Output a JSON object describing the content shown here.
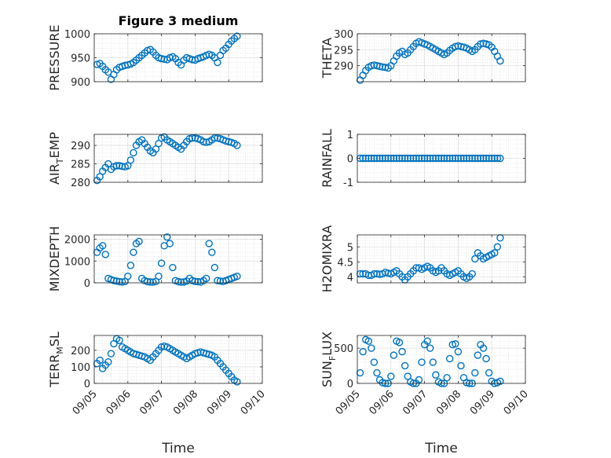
{
  "figure_title": "Figure 3 medium",
  "chart_data": [
    {
      "type": "scatter",
      "title": "Figure 3 medium",
      "ylabel": "PRESSURE",
      "xlabel": "",
      "xlim": [
        "09/05",
        "09/10"
      ],
      "ylim": [
        900,
        1000
      ],
      "yticks": [
        900,
        950,
        1000
      ],
      "grid": true,
      "marker_color": "#0072BD",
      "x": [
        "09/05 02:00",
        "09/05 04:00",
        "09/05 06:00",
        "09/05 08:00",
        "09/05 10:00",
        "09/05 12:00",
        "09/05 14:00",
        "09/05 16:00",
        "09/05 18:00",
        "09/05 20:00",
        "09/05 22:00",
        "09/06 00:00",
        "09/06 02:00",
        "09/06 04:00",
        "09/06 06:00",
        "09/06 08:00",
        "09/06 10:00",
        "09/06 12:00",
        "09/06 14:00",
        "09/06 16:00",
        "09/06 18:00",
        "09/06 20:00",
        "09/06 22:00",
        "09/07 00:00",
        "09/07 02:00",
        "09/07 04:00",
        "09/07 06:00",
        "09/07 08:00",
        "09/07 10:00",
        "09/07 12:00",
        "09/07 14:00",
        "09/07 16:00",
        "09/07 18:00",
        "09/07 20:00",
        "09/07 22:00",
        "09/08 00:00",
        "09/08 02:00",
        "09/08 04:00",
        "09/08 06:00",
        "09/08 08:00",
        "09/08 10:00",
        "09/08 12:00",
        "09/08 14:00",
        "09/08 16:00",
        "09/08 18:00",
        "09/08 20:00",
        "09/08 22:00",
        "09/09 00:00",
        "09/09 02:00",
        "09/09 04:00",
        "09/09 06:00"
      ],
      "y": [
        936,
        938,
        932,
        925,
        920,
        905,
        915,
        925,
        930,
        932,
        934,
        935,
        937,
        940,
        945,
        950,
        955,
        960,
        965,
        967,
        962,
        955,
        950,
        948,
        947,
        946,
        950,
        952,
        948,
        940,
        935,
        945,
        950,
        948,
        946,
        945,
        948,
        950,
        952,
        955,
        957,
        955,
        950,
        940,
        955,
        965,
        970,
        978,
        985,
        990,
        995
      ]
    },
    {
      "type": "scatter",
      "ylabel": "THETA",
      "xlabel": "",
      "xlim": [
        "09/05",
        "09/10"
      ],
      "ylim": [
        285,
        300
      ],
      "yticks": [
        290,
        295,
        300
      ],
      "grid": true,
      "marker_color": "#0072BD",
      "x": [
        "09/05 02:00",
        "09/05 04:00",
        "09/05 06:00",
        "09/05 08:00",
        "09/05 10:00",
        "09/05 12:00",
        "09/05 14:00",
        "09/05 16:00",
        "09/05 18:00",
        "09/05 20:00",
        "09/05 22:00",
        "09/06 00:00",
        "09/06 02:00",
        "09/06 04:00",
        "09/06 06:00",
        "09/06 08:00",
        "09/06 10:00",
        "09/06 12:00",
        "09/06 14:00",
        "09/06 16:00",
        "09/06 18:00",
        "09/06 20:00",
        "09/06 22:00",
        "09/07 00:00",
        "09/07 02:00",
        "09/07 04:00",
        "09/07 06:00",
        "09/07 08:00",
        "09/07 10:00",
        "09/07 12:00",
        "09/07 14:00",
        "09/07 16:00",
        "09/07 18:00",
        "09/07 20:00",
        "09/07 22:00",
        "09/08 00:00",
        "09/08 02:00",
        "09/08 04:00",
        "09/08 06:00",
        "09/08 08:00",
        "09/08 10:00",
        "09/08 12:00",
        "09/08 14:00",
        "09/08 16:00",
        "09/08 18:00",
        "09/08 20:00",
        "09/08 22:00",
        "09/09 00:00",
        "09/09 02:00",
        "09/09 04:00",
        "09/09 06:00"
      ],
      "y": [
        285.5,
        287,
        288.5,
        289.5,
        290,
        290.2,
        290,
        289.8,
        289.6,
        289.5,
        289.3,
        290,
        291.5,
        293,
        294,
        294.5,
        293.5,
        294,
        295,
        296,
        297,
        297.5,
        297.2,
        296.8,
        296.5,
        296,
        295.5,
        295,
        294.5,
        294,
        293.5,
        294,
        294.8,
        295.5,
        296,
        296.2,
        296,
        295.8,
        295.5,
        295,
        294.5,
        295,
        296,
        296.8,
        297,
        296.8,
        296.5,
        295.8,
        294.5,
        293,
        291.5
      ]
    },
    {
      "type": "scatter",
      "ylabel": "AIR_TEMP",
      "ylabel_parts": {
        "base": "AIR",
        "sub": "T",
        "rest": "EMP"
      },
      "xlabel": "",
      "xlim": [
        "09/05",
        "09/10"
      ],
      "ylim": [
        280,
        293
      ],
      "yticks": [
        280,
        285,
        290
      ],
      "grid": true,
      "marker_color": "#0072BD",
      "x": [
        "09/05 02:00",
        "09/05 04:00",
        "09/05 06:00",
        "09/05 08:00",
        "09/05 10:00",
        "09/05 12:00",
        "09/05 14:00",
        "09/05 16:00",
        "09/05 18:00",
        "09/05 20:00",
        "09/05 22:00",
        "09/06 00:00",
        "09/06 02:00",
        "09/06 04:00",
        "09/06 06:00",
        "09/06 08:00",
        "09/06 10:00",
        "09/06 12:00",
        "09/06 14:00",
        "09/06 16:00",
        "09/06 18:00",
        "09/06 20:00",
        "09/06 22:00",
        "09/07 00:00",
        "09/07 02:00",
        "09/07 04:00",
        "09/07 06:00",
        "09/07 08:00",
        "09/07 10:00",
        "09/07 12:00",
        "09/07 14:00",
        "09/07 16:00",
        "09/07 18:00",
        "09/07 20:00",
        "09/07 22:00",
        "09/08 00:00",
        "09/08 02:00",
        "09/08 04:00",
        "09/08 06:00",
        "09/08 08:00",
        "09/08 10:00",
        "09/08 12:00",
        "09/08 14:00",
        "09/08 16:00",
        "09/08 18:00",
        "09/08 20:00",
        "09/08 22:00",
        "09/09 00:00",
        "09/09 02:00",
        "09/09 04:00",
        "09/09 06:00"
      ],
      "y": [
        280.5,
        281.5,
        283,
        284,
        285,
        283.5,
        284.2,
        284.5,
        284.5,
        284.3,
        284.2,
        284.5,
        286,
        288,
        290,
        291,
        291.5,
        290.5,
        289.5,
        288.5,
        288,
        289,
        290.5,
        292,
        292.3,
        291.5,
        291,
        290.5,
        290,
        289.5,
        289,
        290,
        291,
        291.8,
        292,
        292,
        291.8,
        291.5,
        291,
        290.8,
        291,
        291.5,
        292,
        292,
        291.8,
        291.5,
        291.2,
        291,
        290.8,
        290.5,
        290
      ]
    },
    {
      "type": "scatter",
      "ylabel": "RAINFALL",
      "xlabel": "",
      "xlim": [
        "09/05",
        "09/10"
      ],
      "ylim": [
        -1,
        1
      ],
      "yticks": [
        -1,
        0,
        1
      ],
      "grid": true,
      "marker_color": "#0072BD",
      "x": [
        "09/05 02:00",
        "09/05 04:00",
        "09/05 06:00",
        "09/05 08:00",
        "09/05 10:00",
        "09/05 12:00",
        "09/05 14:00",
        "09/05 16:00",
        "09/05 18:00",
        "09/05 20:00",
        "09/05 22:00",
        "09/06 00:00",
        "09/06 02:00",
        "09/06 04:00",
        "09/06 06:00",
        "09/06 08:00",
        "09/06 10:00",
        "09/06 12:00",
        "09/06 14:00",
        "09/06 16:00",
        "09/06 18:00",
        "09/06 20:00",
        "09/06 22:00",
        "09/07 00:00",
        "09/07 02:00",
        "09/07 04:00",
        "09/07 06:00",
        "09/07 08:00",
        "09/07 10:00",
        "09/07 12:00",
        "09/07 14:00",
        "09/07 16:00",
        "09/07 18:00",
        "09/07 20:00",
        "09/07 22:00",
        "09/08 00:00",
        "09/08 02:00",
        "09/08 04:00",
        "09/08 06:00",
        "09/08 08:00",
        "09/08 10:00",
        "09/08 12:00",
        "09/08 14:00",
        "09/08 16:00",
        "09/08 18:00",
        "09/08 20:00",
        "09/08 22:00",
        "09/09 00:00",
        "09/09 02:00",
        "09/09 04:00",
        "09/09 06:00"
      ],
      "y": [
        0,
        0,
        0,
        0,
        0,
        0,
        0,
        0,
        0,
        0,
        0,
        0,
        0,
        0,
        0,
        0,
        0,
        0,
        0,
        0,
        0,
        0,
        0,
        0,
        0,
        0,
        0,
        0,
        0,
        0,
        0,
        0,
        0,
        0,
        0,
        0,
        0,
        0,
        0,
        0,
        0,
        0,
        0,
        0,
        0,
        0,
        0,
        0,
        0,
        0,
        0
      ]
    },
    {
      "type": "scatter",
      "ylabel": "MIXDEPTH",
      "xlabel": "",
      "xlim": [
        "09/05",
        "09/10"
      ],
      "ylim": [
        0,
        2200
      ],
      "yticks": [
        0,
        1000,
        2000
      ],
      "grid": true,
      "marker_color": "#0072BD",
      "x": [
        "09/05 02:00",
        "09/05 04:00",
        "09/05 06:00",
        "09/05 08:00",
        "09/05 10:00",
        "09/05 12:00",
        "09/05 14:00",
        "09/05 16:00",
        "09/05 18:00",
        "09/05 20:00",
        "09/05 22:00",
        "09/06 00:00",
        "09/06 02:00",
        "09/06 04:00",
        "09/06 06:00",
        "09/06 08:00",
        "09/06 10:00",
        "09/06 12:00",
        "09/06 14:00",
        "09/06 16:00",
        "09/06 18:00",
        "09/06 20:00",
        "09/06 22:00",
        "09/07 00:00",
        "09/07 02:00",
        "09/07 04:00",
        "09/07 06:00",
        "09/07 08:00",
        "09/07 10:00",
        "09/07 12:00",
        "09/07 14:00",
        "09/07 16:00",
        "09/07 18:00",
        "09/07 20:00",
        "09/07 22:00",
        "09/08 00:00",
        "09/08 02:00",
        "09/08 04:00",
        "09/08 06:00",
        "09/08 08:00",
        "09/08 10:00",
        "09/08 12:00",
        "09/08 14:00",
        "09/08 16:00",
        "09/08 18:00",
        "09/08 20:00",
        "09/08 22:00",
        "09/09 00:00",
        "09/09 02:00",
        "09/09 04:00",
        "09/09 06:00"
      ],
      "y": [
        1400,
        1600,
        1700,
        1300,
        200,
        150,
        100,
        80,
        50,
        40,
        60,
        300,
        800,
        1400,
        1800,
        1900,
        200,
        100,
        50,
        40,
        30,
        60,
        300,
        900,
        1700,
        2100,
        1800,
        700,
        100,
        50,
        30,
        40,
        80,
        200,
        100,
        60,
        50,
        40,
        100,
        200,
        1800,
        1400,
        700,
        100,
        80,
        60,
        100,
        150,
        200,
        250,
        300
      ]
    },
    {
      "type": "scatter",
      "ylabel": "H2OMIXRA",
      "xlabel": "",
      "xlim": [
        "09/05",
        "09/10"
      ],
      "ylim": [
        3.8,
        5.4
      ],
      "yticks": [
        4,
        4.5,
        5
      ],
      "grid": true,
      "marker_color": "#0072BD",
      "x": [
        "09/05 02:00",
        "09/05 04:00",
        "09/05 06:00",
        "09/05 08:00",
        "09/05 10:00",
        "09/05 12:00",
        "09/05 14:00",
        "09/05 16:00",
        "09/05 18:00",
        "09/05 20:00",
        "09/05 22:00",
        "09/06 00:00",
        "09/06 02:00",
        "09/06 04:00",
        "09/06 06:00",
        "09/06 08:00",
        "09/06 10:00",
        "09/06 12:00",
        "09/06 14:00",
        "09/06 16:00",
        "09/06 18:00",
        "09/06 20:00",
        "09/06 22:00",
        "09/07 00:00",
        "09/07 02:00",
        "09/07 04:00",
        "09/07 06:00",
        "09/07 08:00",
        "09/07 10:00",
        "09/07 12:00",
        "09/07 14:00",
        "09/07 16:00",
        "09/07 18:00",
        "09/07 20:00",
        "09/07 22:00",
        "09/08 00:00",
        "09/08 02:00",
        "09/08 04:00",
        "09/08 06:00",
        "09/08 08:00",
        "09/08 10:00",
        "09/08 12:00",
        "09/08 14:00",
        "09/08 16:00",
        "09/08 18:00",
        "09/08 20:00",
        "09/08 22:00",
        "09/09 00:00",
        "09/09 02:00",
        "09/09 04:00",
        "09/09 06:00"
      ],
      "y": [
        4.1,
        4.1,
        4.1,
        4.05,
        4.05,
        4.1,
        4.1,
        4.08,
        4.1,
        4.15,
        4.12,
        4.1,
        4.15,
        4.2,
        4.1,
        4.0,
        3.9,
        4.0,
        4.1,
        4.2,
        4.3,
        4.3,
        4.25,
        4.3,
        4.35,
        4.3,
        4.2,
        4.15,
        4.2,
        4.3,
        4.2,
        4.1,
        4.05,
        4.1,
        4.15,
        4.2,
        4.1,
        4.0,
        3.95,
        4.0,
        4.1,
        4.6,
        4.8,
        4.7,
        4.6,
        4.65,
        4.7,
        4.75,
        4.8,
        5.0,
        5.3
      ]
    },
    {
      "type": "scatter",
      "ylabel": "TERR_MSL",
      "ylabel_parts": {
        "base": "TERR",
        "sub": "M",
        "rest": "SL"
      },
      "xlabel": "Time",
      "xlim": [
        "09/05",
        "09/10"
      ],
      "ylim": [
        0,
        290
      ],
      "yticks": [
        0,
        100,
        200
      ],
      "xticks": [
        "09/05",
        "09/06",
        "09/07",
        "09/08",
        "09/09",
        "09/10"
      ],
      "grid": true,
      "marker_color": "#0072BD",
      "x": [
        "09/05 02:00",
        "09/05 04:00",
        "09/05 06:00",
        "09/05 08:00",
        "09/05 10:00",
        "09/05 12:00",
        "09/05 14:00",
        "09/05 16:00",
        "09/05 18:00",
        "09/05 20:00",
        "09/05 22:00",
        "09/06 00:00",
        "09/06 02:00",
        "09/06 04:00",
        "09/06 06:00",
        "09/06 08:00",
        "09/06 10:00",
        "09/06 12:00",
        "09/06 14:00",
        "09/06 16:00",
        "09/06 18:00",
        "09/06 20:00",
        "09/06 22:00",
        "09/07 00:00",
        "09/07 02:00",
        "09/07 04:00",
        "09/07 06:00",
        "09/07 08:00",
        "09/07 10:00",
        "09/07 12:00",
        "09/07 14:00",
        "09/07 16:00",
        "09/07 18:00",
        "09/07 20:00",
        "09/07 22:00",
        "09/08 00:00",
        "09/08 02:00",
        "09/08 04:00",
        "09/08 06:00",
        "09/08 08:00",
        "09/08 10:00",
        "09/08 12:00",
        "09/08 14:00",
        "09/08 16:00",
        "09/08 18:00",
        "09/08 20:00",
        "09/08 22:00",
        "09/09 00:00",
        "09/09 02:00",
        "09/09 04:00",
        "09/09 06:00"
      ],
      "y": [
        120,
        140,
        90,
        110,
        130,
        180,
        240,
        270,
        260,
        220,
        210,
        200,
        190,
        180,
        175,
        170,
        165,
        160,
        150,
        140,
        160,
        180,
        200,
        220,
        225,
        220,
        210,
        200,
        190,
        180,
        170,
        160,
        150,
        160,
        170,
        180,
        185,
        190,
        185,
        180,
        175,
        170,
        160,
        140,
        120,
        100,
        80,
        60,
        40,
        20,
        10
      ]
    },
    {
      "type": "scatter",
      "ylabel": "SUN_FLUX",
      "ylabel_parts": {
        "base": "SUN",
        "sub": "F",
        "rest": "LUX"
      },
      "xlabel": "Time",
      "xlim": [
        "09/05",
        "09/10"
      ],
      "ylim": [
        0,
        680
      ],
      "yticks": [
        0,
        500
      ],
      "xticks": [
        "09/05",
        "09/06",
        "09/07",
        "09/08",
        "09/09",
        "09/10"
      ],
      "grid": true,
      "marker_color": "#0072BD",
      "x": [
        "09/05 02:00",
        "09/05 04:00",
        "09/05 06:00",
        "09/05 08:00",
        "09/05 10:00",
        "09/05 12:00",
        "09/05 14:00",
        "09/05 16:00",
        "09/05 18:00",
        "09/05 20:00",
        "09/05 22:00",
        "09/06 00:00",
        "09/06 02:00",
        "09/06 04:00",
        "09/06 06:00",
        "09/06 08:00",
        "09/06 10:00",
        "09/06 12:00",
        "09/06 14:00",
        "09/06 16:00",
        "09/06 18:00",
        "09/06 20:00",
        "09/06 22:00",
        "09/07 00:00",
        "09/07 02:00",
        "09/07 04:00",
        "09/07 06:00",
        "09/07 08:00",
        "09/07 10:00",
        "09/07 12:00",
        "09/07 14:00",
        "09/07 16:00",
        "09/07 18:00",
        "09/07 20:00",
        "09/07 22:00",
        "09/08 00:00",
        "09/08 02:00",
        "09/08 04:00",
        "09/08 06:00",
        "09/08 08:00",
        "09/08 10:00",
        "09/08 12:00",
        "09/08 14:00",
        "09/08 16:00",
        "09/08 18:00",
        "09/08 20:00",
        "09/08 22:00",
        "09/09 00:00",
        "09/09 02:00",
        "09/09 04:00",
        "09/09 06:00"
      ],
      "y": [
        150,
        450,
        620,
        600,
        500,
        300,
        150,
        50,
        10,
        0,
        0,
        100,
        400,
        600,
        580,
        450,
        250,
        100,
        20,
        0,
        0,
        50,
        300,
        550,
        600,
        500,
        300,
        120,
        20,
        0,
        0,
        80,
        350,
        550,
        560,
        450,
        250,
        80,
        10,
        0,
        0,
        150,
        400,
        550,
        500,
        350,
        150,
        30,
        0,
        10,
        30
      ]
    }
  ]
}
